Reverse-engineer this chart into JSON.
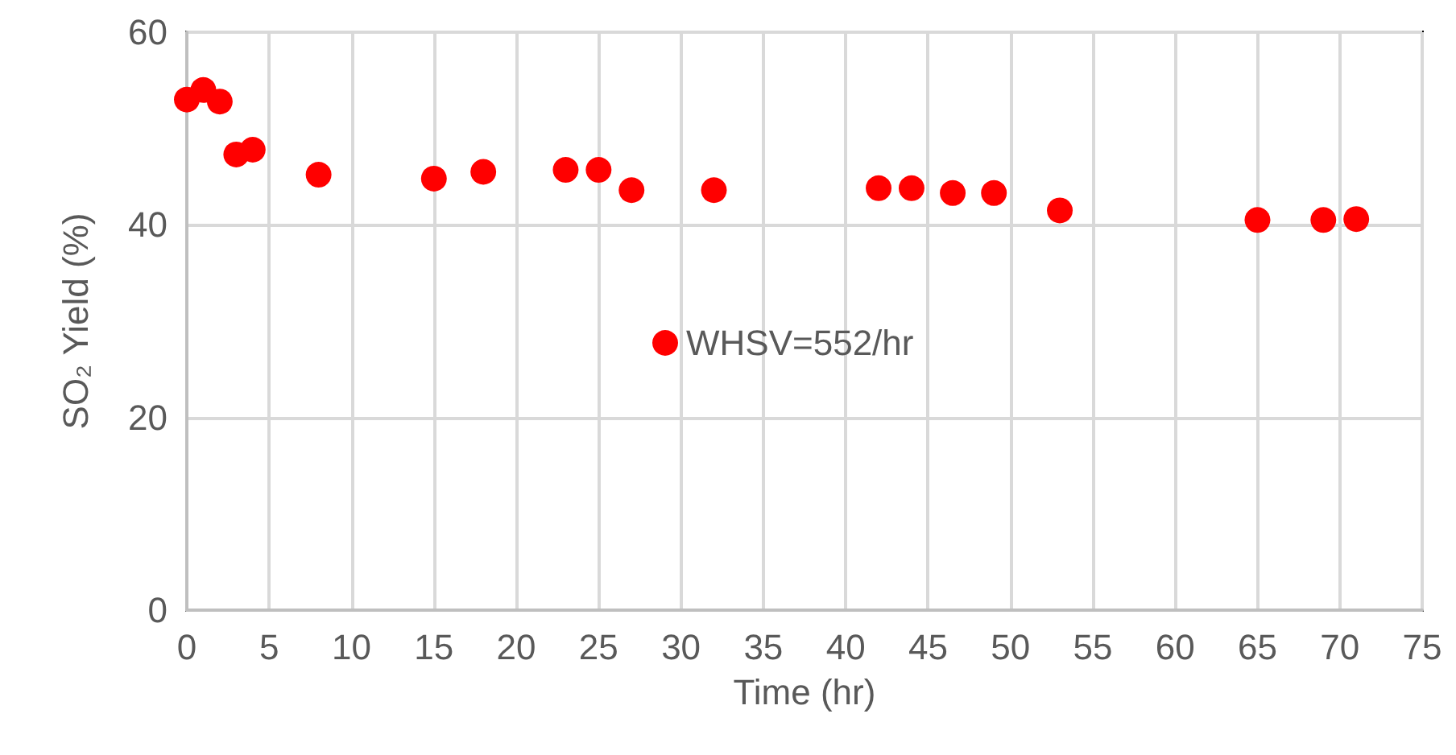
{
  "chart_data": {
    "type": "scatter",
    "xlabel": "Time (hr)",
    "ylabel": "SO₂ Yield (%)",
    "x": [
      0,
      1,
      2,
      3,
      4,
      8,
      15,
      18,
      23,
      25,
      27,
      32,
      42,
      44,
      46.5,
      49,
      53,
      65,
      69,
      71
    ],
    "series": [
      {
        "name": "WHSV=552/hr",
        "color": "#ff0000",
        "values": [
          53.0,
          54.0,
          52.8,
          47.3,
          47.8,
          45.2,
          44.8,
          45.5,
          45.7,
          45.7,
          43.6,
          43.6,
          43.8,
          43.8,
          43.3,
          43.3,
          41.5,
          40.5,
          40.5,
          40.6
        ]
      }
    ],
    "xlim": [
      0,
      75
    ],
    "xticks": [
      0,
      5,
      10,
      15,
      20,
      25,
      30,
      35,
      40,
      45,
      50,
      55,
      60,
      65,
      70,
      75
    ],
    "ylim": [
      0,
      60
    ],
    "yticks": [
      0,
      20,
      40,
      60
    ],
    "grid": true,
    "legend": "center",
    "marker": "circle"
  }
}
